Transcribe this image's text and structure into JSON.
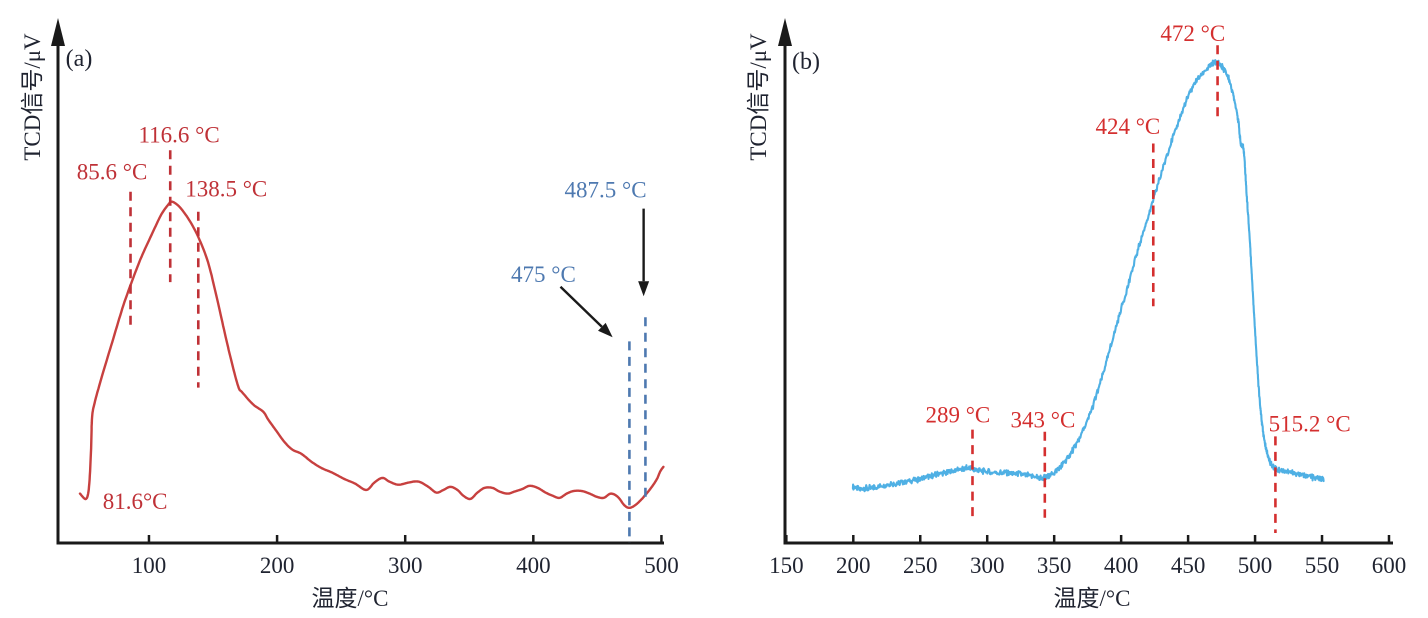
{
  "figure_caption": "",
  "chart_data": [
    {
      "type": "line",
      "panel_tag": "(a)",
      "xlabel": "温度/°C",
      "ylabel": "TCD信号/μV",
      "x_range": [
        29,
        502
      ],
      "x_ticks": [
        100,
        200,
        300,
        400,
        500
      ],
      "y_axis": "TCD signal, arbitrary units, no ticks",
      "grid": false,
      "axis_color": "#1a1a1a",
      "curve_color": "#c7403f",
      "curve_width": 2.4,
      "curve_name": "tpd-curve-a",
      "samples": 700,
      "noise_amplitude": 0,
      "curve_points": [
        [
          46.2,
          0.094
        ],
        [
          50.9,
          0.084
        ],
        [
          53.2,
          0.107
        ],
        [
          54.8,
          0.178
        ],
        [
          55.6,
          0.239
        ],
        [
          57.9,
          0.27
        ],
        [
          64.2,
          0.325
        ],
        [
          72.0,
          0.388
        ],
        [
          79.8,
          0.451
        ],
        [
          86.8,
          0.499
        ],
        [
          93.8,
          0.543
        ],
        [
          102.4,
          0.589
        ],
        [
          109.5,
          0.625
        ],
        [
          114.9,
          0.644
        ],
        [
          118.1,
          0.65
        ],
        [
          124.3,
          0.639
        ],
        [
          132.2,
          0.612
        ],
        [
          139.2,
          0.579
        ],
        [
          146.2,
          0.534
        ],
        [
          152.5,
          0.472
        ],
        [
          158.7,
          0.405
        ],
        [
          164.2,
          0.348
        ],
        [
          169.7,
          0.298
        ],
        [
          172.8,
          0.287
        ],
        [
          181.3,
          0.264
        ],
        [
          189.2,
          0.25
        ],
        [
          193.1,
          0.235
        ],
        [
          199.3,
          0.214
        ],
        [
          205.6,
          0.193
        ],
        [
          211.8,
          0.178
        ],
        [
          218.9,
          0.17
        ],
        [
          226.7,
          0.155
        ],
        [
          234.5,
          0.143
        ],
        [
          243.1,
          0.134
        ],
        [
          252.4,
          0.122
        ],
        [
          261.0,
          0.113
        ],
        [
          269.6,
          0.101
        ],
        [
          275.9,
          0.115
        ],
        [
          282.1,
          0.124
        ],
        [
          287.6,
          0.117
        ],
        [
          294.6,
          0.111
        ],
        [
          302.4,
          0.115
        ],
        [
          310.3,
          0.117
        ],
        [
          318.1,
          0.107
        ],
        [
          324.3,
          0.096
        ],
        [
          329.8,
          0.101
        ],
        [
          335.3,
          0.107
        ],
        [
          340.8,
          0.101
        ],
        [
          345.4,
          0.09
        ],
        [
          350.9,
          0.084
        ],
        [
          356.4,
          0.096
        ],
        [
          361.9,
          0.105
        ],
        [
          368.1,
          0.105
        ],
        [
          373.6,
          0.098
        ],
        [
          379.9,
          0.094
        ],
        [
          385.4,
          0.098
        ],
        [
          391.6,
          0.103
        ],
        [
          397.1,
          0.109
        ],
        [
          403.4,
          0.105
        ],
        [
          409.6,
          0.096
        ],
        [
          415.1,
          0.09
        ],
        [
          420.5,
          0.086
        ],
        [
          426.0,
          0.094
        ],
        [
          431.5,
          0.099
        ],
        [
          437.8,
          0.099
        ],
        [
          444.0,
          0.094
        ],
        [
          449.5,
          0.088
        ],
        [
          455.0,
          0.086
        ],
        [
          460.4,
          0.094
        ],
        [
          465.9,
          0.088
        ],
        [
          471.0,
          0.072
        ],
        [
          475.0,
          0.067
        ],
        [
          479.5,
          0.072
        ],
        [
          484.0,
          0.082
        ],
        [
          488.3,
          0.094
        ],
        [
          492.5,
          0.107
        ],
        [
          496.5,
          0.122
        ],
        [
          499.0,
          0.136
        ],
        [
          501.5,
          0.145
        ]
      ],
      "dashed_lines": [
        {
          "t": 85.6,
          "s_top": 0.669,
          "s_bottom": 0.413,
          "color": "#bf3137"
        },
        {
          "t": 116.6,
          "s_top": 0.748,
          "s_bottom": 0.497,
          "color": "#bf3137"
        },
        {
          "t": 138.5,
          "s_top": 0.631,
          "s_bottom": 0.296,
          "color": "#bf3137"
        },
        {
          "t": 475,
          "s_top": 0.384,
          "s_bottom": 0.0,
          "color": "#4e79b0"
        },
        {
          "t": 487.5,
          "s_top": 0.43,
          "s_bottom": 0.076,
          "color": "#4e79b0"
        }
      ],
      "labels": [
        {
          "text": "85.6 °C",
          "t": 71.2,
          "s": 0.708,
          "color": "#bf3137"
        },
        {
          "text": "116.6 °C",
          "t": 123.5,
          "s": 0.778,
          "color": "#bf3137"
        },
        {
          "text": "138.5 °C",
          "t": 160.3,
          "s": 0.675,
          "color": "#bf3137"
        },
        {
          "text": "81.6°C",
          "t": 89.2,
          "s": 0.08,
          "color": "#bf3137"
        },
        {
          "text": "475 °C",
          "t": 407.9,
          "s": 0.512,
          "color": "#4e79b0"
        },
        {
          "text": "487.5 °C",
          "t": 456.4,
          "s": 0.673,
          "color": "#4e79b0"
        }
      ],
      "arrows": [
        {
          "x1_t": 421.2,
          "y1_s": 0.488,
          "x2_t": 461.9,
          "y2_s": 0.392
        },
        {
          "x1_t": 486.1,
          "y1_s": 0.637,
          "x2_t": 486.1,
          "y2_s": 0.47
        }
      ]
    },
    {
      "type": "line",
      "panel_tag": "(b)",
      "xlabel": "温度/°C",
      "ylabel": "TCD信号/μV",
      "x_range": [
        149,
        603
      ],
      "x_ticks": [
        150,
        200,
        250,
        300,
        350,
        400,
        450,
        500,
        550,
        600
      ],
      "y_axis": "TCD signal, arbitrary units, no ticks",
      "grid": false,
      "axis_color": "#1a1a1a",
      "curve_color": "#4fb0e4",
      "curve_width": 2.1,
      "curve_name": "tpd-curve-b",
      "samples": 1100,
      "noise_amplitude": 0.0065,
      "curve_points": [
        [
          199.7,
          0.107
        ],
        [
          205.0,
          0.103
        ],
        [
          212.4,
          0.105
        ],
        [
          219.9,
          0.109
        ],
        [
          227.4,
          0.113
        ],
        [
          234.8,
          0.115
        ],
        [
          242.3,
          0.119
        ],
        [
          249.7,
          0.122
        ],
        [
          257.2,
          0.126
        ],
        [
          264.7,
          0.132
        ],
        [
          272.1,
          0.136
        ],
        [
          279.6,
          0.14
        ],
        [
          285.6,
          0.142
        ],
        [
          290.8,
          0.14
        ],
        [
          298.3,
          0.136
        ],
        [
          305.7,
          0.134
        ],
        [
          313.2,
          0.134
        ],
        [
          320.6,
          0.132
        ],
        [
          328.1,
          0.13
        ],
        [
          335.6,
          0.126
        ],
        [
          341.5,
          0.124
        ],
        [
          346.8,
          0.128
        ],
        [
          352.7,
          0.14
        ],
        [
          358.0,
          0.155
        ],
        [
          363.2,
          0.174
        ],
        [
          369.2,
          0.201
        ],
        [
          376.6,
          0.245
        ],
        [
          384.1,
          0.302
        ],
        [
          391.6,
          0.369
        ],
        [
          399.0,
          0.436
        ],
        [
          406.5,
          0.503
        ],
        [
          413.9,
          0.57
        ],
        [
          421.4,
          0.631
        ],
        [
          428.8,
          0.694
        ],
        [
          436.3,
          0.755
        ],
        [
          443.8,
          0.809
        ],
        [
          451.2,
          0.857
        ],
        [
          458.7,
          0.889
        ],
        [
          466.1,
          0.908
        ],
        [
          470.6,
          0.916
        ],
        [
          475.1,
          0.908
        ],
        [
          479.6,
          0.889
        ],
        [
          483.3,
          0.857
        ],
        [
          487.0,
          0.813
        ],
        [
          489.3,
          0.761
        ],
        [
          491.5,
          0.748
        ],
        [
          493.7,
          0.665
        ],
        [
          496.0,
          0.579
        ],
        [
          498.2,
          0.484
        ],
        [
          500.4,
          0.388
        ],
        [
          502.7,
          0.296
        ],
        [
          504.9,
          0.235
        ],
        [
          507.2,
          0.191
        ],
        [
          510.1,
          0.163
        ],
        [
          513.1,
          0.147
        ],
        [
          516.9,
          0.14
        ],
        [
          522.8,
          0.136
        ],
        [
          530.3,
          0.132
        ],
        [
          537.7,
          0.128
        ],
        [
          545.2,
          0.124
        ],
        [
          551.2,
          0.122
        ]
      ],
      "dashed_lines": [
        {
          "t": 289,
          "s_top": 0.216,
          "s_bottom": 0.05,
          "color": "#d42f2f"
        },
        {
          "t": 343,
          "s_top": 0.212,
          "s_bottom": 0.048,
          "color": "#d42f2f"
        },
        {
          "t": 424,
          "s_top": 0.761,
          "s_bottom": 0.451,
          "color": "#d42f2f"
        },
        {
          "t": 472,
          "s_top": 0.948,
          "s_bottom": 0.803,
          "color": "#d42f2f"
        },
        {
          "t": 515.2,
          "s_top": 0.203,
          "s_bottom": 0.019,
          "color": "#d42f2f"
        }
      ],
      "labels": [
        {
          "text": "289 °C",
          "t": 278.1,
          "s": 0.245,
          "color": "#d42f2f"
        },
        {
          "text": "343 °C",
          "t": 341.6,
          "s": 0.235,
          "color": "#d42f2f"
        },
        {
          "text": "424 °C",
          "t": 405.0,
          "s": 0.794,
          "color": "#d42f2f"
        },
        {
          "text": "472 °C",
          "t": 453.5,
          "s": 0.971,
          "color": "#d42f2f"
        },
        {
          "text": "515.2 °C",
          "t": 540.8,
          "s": 0.228,
          "color": "#d42f2f"
        }
      ],
      "arrows": []
    }
  ]
}
